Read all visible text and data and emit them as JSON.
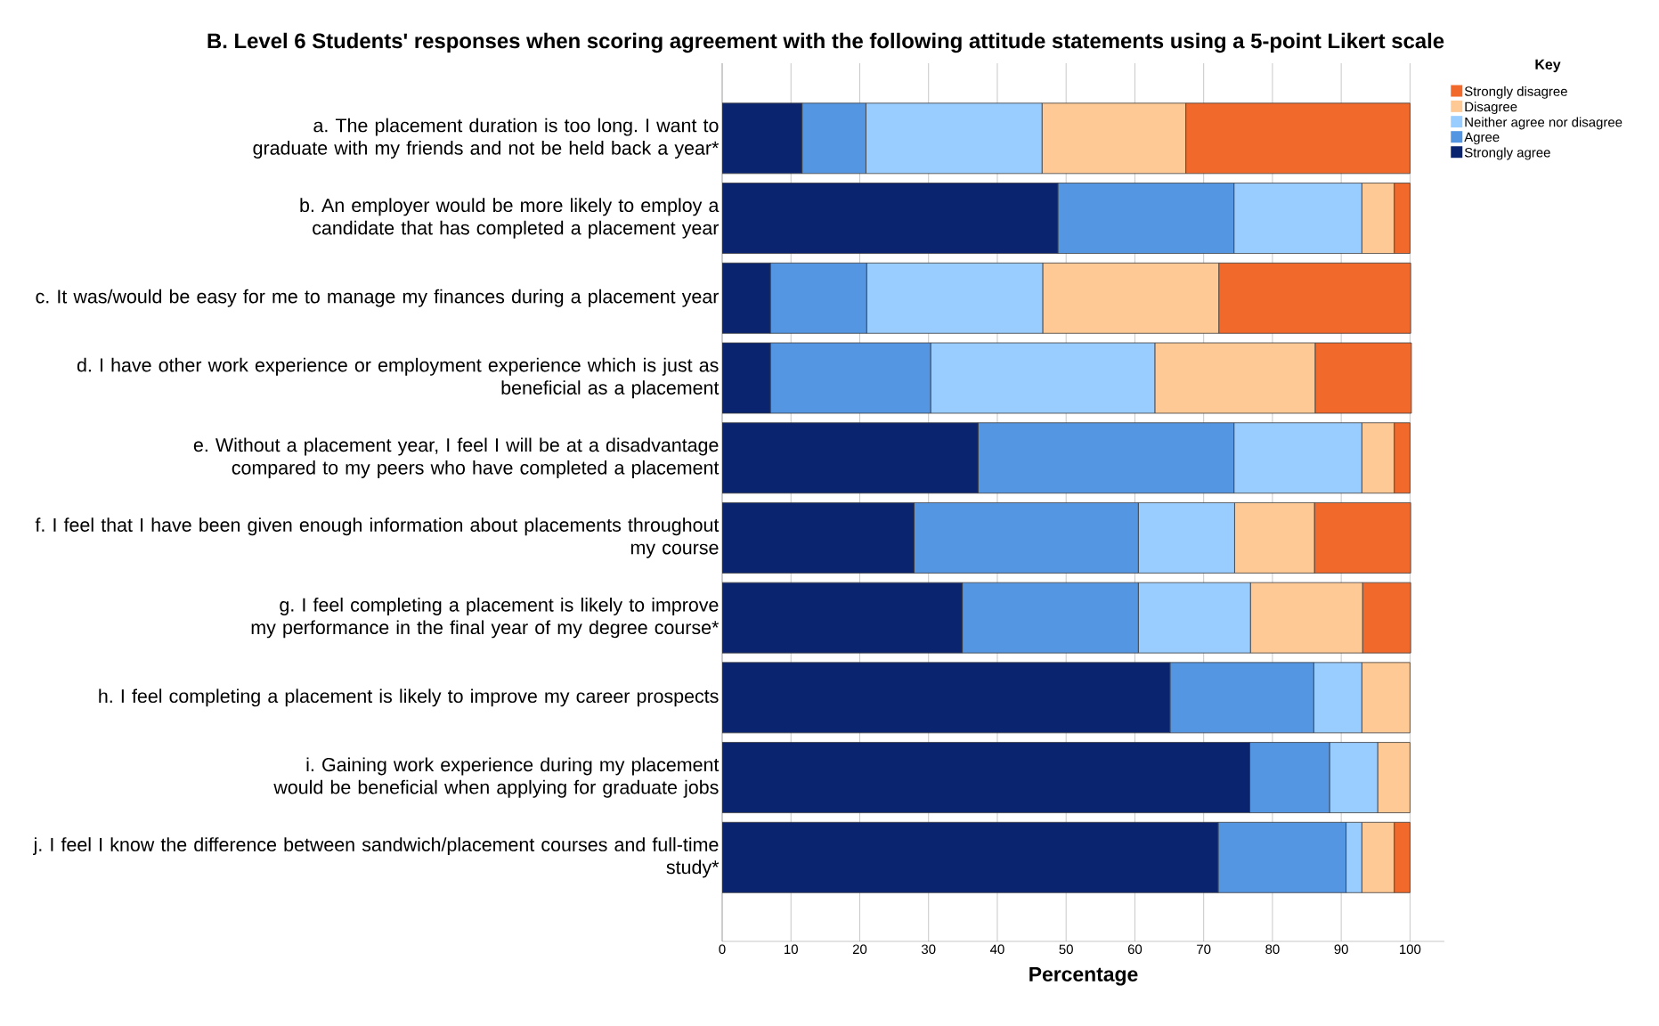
{
  "chart_data": {
    "type": "bar",
    "orientation": "horizontal",
    "stacked": true,
    "title": "B. Level 6 Students' responses when scoring agreement with the following attitude statements using a 5-point Likert scale",
    "xlabel": "Percentage",
    "legend_title": "Key",
    "legend": "top right",
    "grid": "x",
    "xlim": [
      0,
      105
    ],
    "xticks": [
      0,
      10,
      20,
      30,
      40,
      50,
      60,
      70,
      80,
      90,
      100
    ],
    "categories": [
      "a. The placement duration is too long. I want to graduate with my friends and not be held back a year*",
      "b. An employer would be more likely to employ a candidate that has completed a placement year",
      "c. It was/would be easy for me to manage my finances during a placement year",
      "d. I have other work experience or employment experience which is just as beneficial as a placement",
      "e. Without a placement year, I feel I will be at a disadvantage compared to my peers who have completed a placement",
      "f. I feel that I have been given enough information about placements throughout my course",
      "g. I feel completing a placement is likely to improve my performance in the final year of my degree course*",
      "h. I feel completing a placement is likely to improve my career prospects",
      "i. Gaining work experience during my placement would be beneficial when applying for graduate jobs",
      "j. I feel I know the difference between sandwich/placement courses and full-time study*"
    ],
    "series": [
      {
        "name": "Strongly agree",
        "color": "#0a2470",
        "values": [
          11.6,
          48.8,
          7.0,
          7.0,
          37.2,
          27.9,
          34.9,
          65.1,
          76.7,
          72.1
        ]
      },
      {
        "name": "Agree",
        "color": "#5596e3",
        "values": [
          9.3,
          25.6,
          14.0,
          23.3,
          37.2,
          32.6,
          25.6,
          20.9,
          11.6,
          18.6
        ]
      },
      {
        "name": "Neither agree nor disagree",
        "color": "#99ccff",
        "values": [
          25.6,
          18.6,
          25.6,
          32.6,
          18.6,
          14.0,
          16.3,
          7.0,
          7.0,
          2.3
        ]
      },
      {
        "name": "Disagree",
        "color": "#fec995",
        "values": [
          20.9,
          4.7,
          25.6,
          23.3,
          4.7,
          11.6,
          16.3,
          7.0,
          4.7,
          4.7
        ]
      },
      {
        "name": "Strongly disagree",
        "color": "#f26a2b",
        "values": [
          32.6,
          2.3,
          27.9,
          14.0,
          2.3,
          14.0,
          7.0,
          0,
          0,
          2.3
        ]
      }
    ]
  }
}
